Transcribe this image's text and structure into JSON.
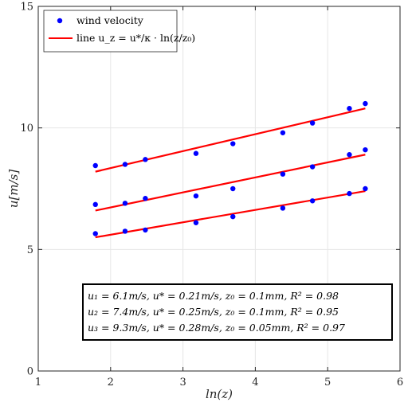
{
  "chart_data": {
    "type": "scatter",
    "xlabel": "ln(z)",
    "ylabel": "u[m/s]",
    "xlim": [
      1,
      6
    ],
    "ylim": [
      0,
      15
    ],
    "xticks": [
      1,
      2,
      3,
      4,
      5,
      6
    ],
    "yticks": [
      0,
      5,
      10,
      15
    ],
    "grid": true,
    "legend_position": "top-left",
    "legend": {
      "points_label": "wind velocity",
      "line_label": "line u_z = u*/κ · ln(z/z₀)"
    },
    "colors": {
      "points": "#0000ff",
      "line": "#ff0000"
    },
    "x": [
      1.79,
      2.2,
      2.48,
      3.18,
      3.69,
      4.38,
      4.79,
      5.3,
      5.52
    ],
    "series": [
      {
        "points": [
          8.45,
          8.5,
          8.7,
          8.95,
          9.35,
          9.8,
          10.2,
          10.8,
          11.0
        ],
        "fit": {
          "x": [
            1.79,
            5.52
          ],
          "y": [
            8.2,
            10.8
          ]
        }
      },
      {
        "points": [
          6.85,
          6.9,
          7.1,
          7.2,
          7.5,
          8.1,
          8.4,
          8.9,
          9.1
        ],
        "fit": {
          "x": [
            1.79,
            5.52
          ],
          "y": [
            6.6,
            8.9
          ]
        }
      },
      {
        "points": [
          5.65,
          5.75,
          5.8,
          6.1,
          6.35,
          6.7,
          7.0,
          7.3,
          7.5
        ],
        "fit": {
          "x": [
            1.79,
            5.52
          ],
          "y": [
            5.5,
            7.4
          ]
        }
      }
    ],
    "annotations": [
      "u₁ = 6.1m/s, u* = 0.21m/s, z₀ = 0.1mm, R² = 0.98",
      "u₂ = 7.4m/s, u* = 0.25m/s, z₀ = 0.1mm, R² = 0.95",
      "u₃ = 9.3m/s, u* = 0.28m/s, z₀ = 0.05mm, R² = 0.97"
    ]
  }
}
